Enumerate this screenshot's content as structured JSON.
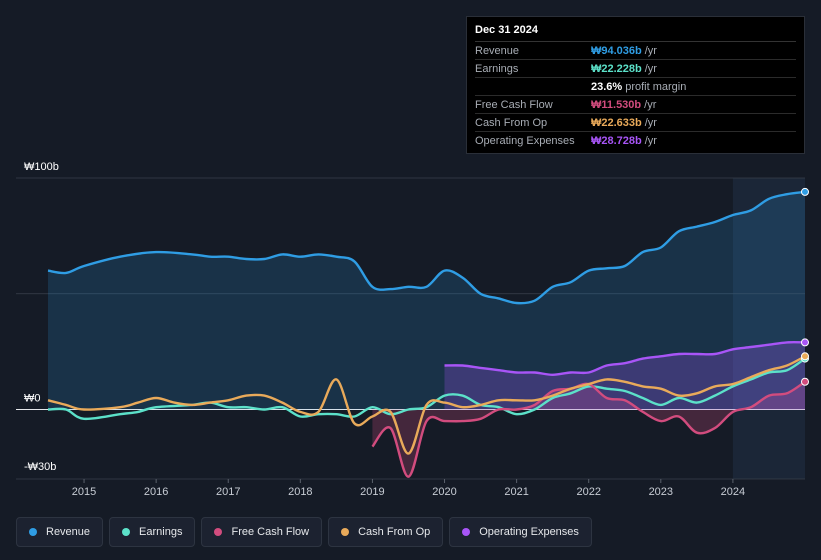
{
  "tooltip": {
    "date": "Dec 31 2024",
    "rows": [
      {
        "label": "Revenue",
        "value": "₩94.036b",
        "unit": "/yr",
        "color": "#2f9de4"
      },
      {
        "label": "Earnings",
        "value": "₩22.228b",
        "unit": "/yr",
        "color": "#5ce1c9"
      },
      {
        "label": "",
        "value": "23.6%",
        "unit": "profit margin",
        "color": "#ffffff"
      },
      {
        "label": "Free Cash Flow",
        "value": "₩11.530b",
        "unit": "/yr",
        "color": "#d24c7e"
      },
      {
        "label": "Cash From Op",
        "value": "₩22.633b",
        "unit": "/yr",
        "color": "#e9aa5a"
      },
      {
        "label": "Operating Expenses",
        "value": "₩28.728b",
        "unit": "/yr",
        "color": "#a855f7"
      }
    ]
  },
  "legend": [
    {
      "label": "Revenue",
      "color": "#2f9de4"
    },
    {
      "label": "Earnings",
      "color": "#5ce1c9"
    },
    {
      "label": "Free Cash Flow",
      "color": "#d24c7e"
    },
    {
      "label": "Cash From Op",
      "color": "#e9aa5a"
    },
    {
      "label": "Operating Expenses",
      "color": "#a855f7"
    }
  ],
  "chart_data": {
    "type": "line",
    "title": "",
    "y_labels": [
      {
        "label": "₩100b",
        "value": 100
      },
      {
        "label": "₩0",
        "value": 0
      },
      {
        "label": "-₩30b",
        "value": -30
      }
    ],
    "ylim": [
      -30,
      100
    ],
    "xlim": [
      2014.5,
      2025.0
    ],
    "x_ticks": [
      2015,
      2016,
      2017,
      2018,
      2019,
      2020,
      2021,
      2022,
      2023,
      2024
    ],
    "x_tick_labels": [
      "2015",
      "2016",
      "2017",
      "2018",
      "2019",
      "2020",
      "2021",
      "2022",
      "2023",
      "2024"
    ],
    "forecast_start": 2024.0,
    "series": [
      {
        "name": "Revenue",
        "color": "#2f9de4",
        "fill": true,
        "points": [
          [
            2014.5,
            60
          ],
          [
            2014.75,
            59
          ],
          [
            2015.0,
            62
          ],
          [
            2015.5,
            66
          ],
          [
            2016.0,
            68
          ],
          [
            2016.5,
            67
          ],
          [
            2016.75,
            66
          ],
          [
            2017.0,
            66
          ],
          [
            2017.25,
            65
          ],
          [
            2017.5,
            65
          ],
          [
            2017.75,
            67
          ],
          [
            2018.0,
            66
          ],
          [
            2018.25,
            67
          ],
          [
            2018.5,
            66
          ],
          [
            2018.75,
            64
          ],
          [
            2019.0,
            53
          ],
          [
            2019.25,
            52
          ],
          [
            2019.5,
            53
          ],
          [
            2019.75,
            53
          ],
          [
            2020.0,
            60
          ],
          [
            2020.25,
            57
          ],
          [
            2020.5,
            50
          ],
          [
            2020.75,
            48
          ],
          [
            2021.0,
            46
          ],
          [
            2021.25,
            47
          ],
          [
            2021.5,
            53
          ],
          [
            2021.75,
            55
          ],
          [
            2022.0,
            60
          ],
          [
            2022.25,
            61
          ],
          [
            2022.5,
            62
          ],
          [
            2022.75,
            68
          ],
          [
            2023.0,
            70
          ],
          [
            2023.25,
            77
          ],
          [
            2023.5,
            79
          ],
          [
            2023.75,
            81
          ],
          [
            2024.0,
            84
          ],
          [
            2024.25,
            86
          ],
          [
            2024.5,
            91
          ],
          [
            2024.75,
            93
          ],
          [
            2025.0,
            94
          ]
        ]
      },
      {
        "name": "Earnings",
        "color": "#5ce1c9",
        "fill": false,
        "points": [
          [
            2014.5,
            0
          ],
          [
            2014.75,
            0
          ],
          [
            2015.0,
            -4
          ],
          [
            2015.5,
            -2
          ],
          [
            2015.75,
            -1
          ],
          [
            2016.0,
            1
          ],
          [
            2016.5,
            2
          ],
          [
            2016.75,
            3
          ],
          [
            2017.0,
            1
          ],
          [
            2017.25,
            1
          ],
          [
            2017.5,
            0
          ],
          [
            2017.75,
            1
          ],
          [
            2018.0,
            -3
          ],
          [
            2018.25,
            -2
          ],
          [
            2018.5,
            -2
          ],
          [
            2018.75,
            -3
          ],
          [
            2019.0,
            1
          ],
          [
            2019.25,
            -2
          ],
          [
            2019.5,
            0
          ],
          [
            2019.75,
            1
          ],
          [
            2020.0,
            6
          ],
          [
            2020.25,
            6
          ],
          [
            2020.5,
            2
          ],
          [
            2020.75,
            1
          ],
          [
            2021.0,
            -2
          ],
          [
            2021.25,
            0
          ],
          [
            2021.5,
            5
          ],
          [
            2021.75,
            7
          ],
          [
            2022.0,
            10
          ],
          [
            2022.25,
            9
          ],
          [
            2022.5,
            8
          ],
          [
            2022.75,
            5
          ],
          [
            2023.0,
            2
          ],
          [
            2023.25,
            5
          ],
          [
            2023.5,
            3
          ],
          [
            2023.75,
            6
          ],
          [
            2024.0,
            10
          ],
          [
            2024.25,
            13
          ],
          [
            2024.5,
            16
          ],
          [
            2024.75,
            17
          ],
          [
            2025.0,
            22
          ]
        ]
      },
      {
        "name": "Free Cash Flow",
        "color": "#d24c7e",
        "fill": true,
        "points": [
          [
            2019.0,
            -16
          ],
          [
            2019.25,
            -8
          ],
          [
            2019.5,
            -29
          ],
          [
            2019.75,
            -5
          ],
          [
            2020.0,
            -5
          ],
          [
            2020.25,
            -5
          ],
          [
            2020.5,
            -4
          ],
          [
            2020.75,
            0
          ],
          [
            2021.0,
            0
          ],
          [
            2021.25,
            2
          ],
          [
            2021.5,
            8
          ],
          [
            2021.75,
            9
          ],
          [
            2022.0,
            11
          ],
          [
            2022.25,
            5
          ],
          [
            2022.5,
            4
          ],
          [
            2022.75,
            -1
          ],
          [
            2023.0,
            -5
          ],
          [
            2023.25,
            -3
          ],
          [
            2023.5,
            -10
          ],
          [
            2023.75,
            -8
          ],
          [
            2024.0,
            -1
          ],
          [
            2024.25,
            1
          ],
          [
            2024.5,
            6
          ],
          [
            2024.75,
            7
          ],
          [
            2025.0,
            12
          ]
        ]
      },
      {
        "name": "Cash From Op",
        "color": "#e9aa5a",
        "fill": false,
        "points": [
          [
            2014.5,
            4
          ],
          [
            2014.75,
            2
          ],
          [
            2015.0,
            0
          ],
          [
            2015.5,
            1
          ],
          [
            2015.75,
            3
          ],
          [
            2016.0,
            5
          ],
          [
            2016.25,
            3
          ],
          [
            2016.5,
            2
          ],
          [
            2016.75,
            3
          ],
          [
            2017.0,
            4
          ],
          [
            2017.25,
            6
          ],
          [
            2017.5,
            6
          ],
          [
            2017.75,
            3
          ],
          [
            2018.0,
            -1
          ],
          [
            2018.25,
            -1
          ],
          [
            2018.5,
            13
          ],
          [
            2018.75,
            -6
          ],
          [
            2019.0,
            -3
          ],
          [
            2019.25,
            -1
          ],
          [
            2019.5,
            -19
          ],
          [
            2019.75,
            2
          ],
          [
            2020.0,
            3
          ],
          [
            2020.25,
            1
          ],
          [
            2020.5,
            2
          ],
          [
            2020.75,
            4
          ],
          [
            2021.0,
            4
          ],
          [
            2021.25,
            4
          ],
          [
            2021.5,
            6
          ],
          [
            2021.75,
            9
          ],
          [
            2022.0,
            11
          ],
          [
            2022.25,
            13
          ],
          [
            2022.5,
            12
          ],
          [
            2022.75,
            10
          ],
          [
            2023.0,
            9
          ],
          [
            2023.25,
            6
          ],
          [
            2023.5,
            7
          ],
          [
            2023.75,
            10
          ],
          [
            2024.0,
            11
          ],
          [
            2024.25,
            14
          ],
          [
            2024.5,
            17
          ],
          [
            2024.75,
            19
          ],
          [
            2025.0,
            23
          ]
        ]
      },
      {
        "name": "Operating Expenses",
        "color": "#a855f7",
        "fill": true,
        "points": [
          [
            2020.0,
            19
          ],
          [
            2020.25,
            19
          ],
          [
            2020.5,
            18
          ],
          [
            2020.75,
            17
          ],
          [
            2021.0,
            16
          ],
          [
            2021.25,
            16
          ],
          [
            2021.5,
            15
          ],
          [
            2021.75,
            16
          ],
          [
            2022.0,
            16
          ],
          [
            2022.25,
            19
          ],
          [
            2022.5,
            20
          ],
          [
            2022.75,
            22
          ],
          [
            2023.0,
            23
          ],
          [
            2023.25,
            24
          ],
          [
            2023.5,
            24
          ],
          [
            2023.75,
            24
          ],
          [
            2024.0,
            26
          ],
          [
            2024.25,
            27
          ],
          [
            2024.5,
            28
          ],
          [
            2024.75,
            29
          ],
          [
            2025.0,
            29
          ]
        ]
      }
    ]
  }
}
